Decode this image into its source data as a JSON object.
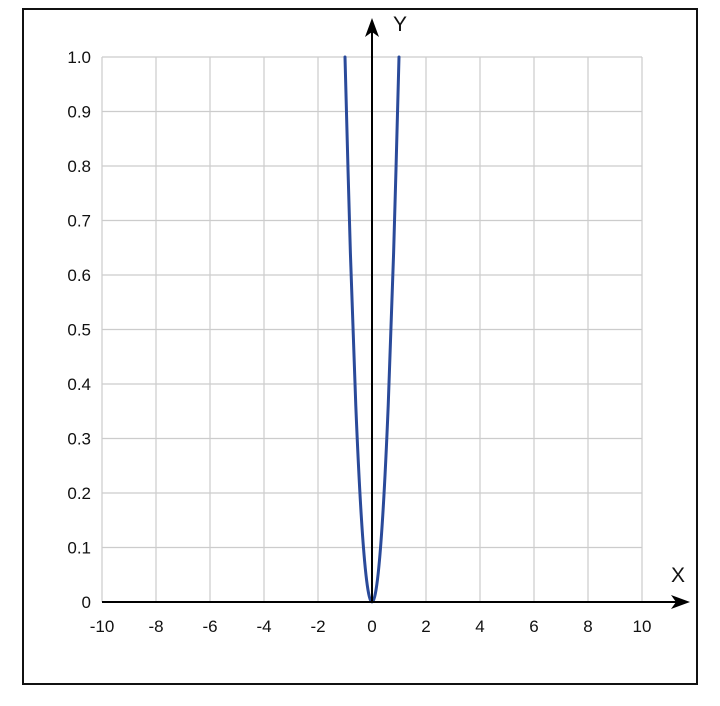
{
  "chart_data": {
    "type": "line",
    "title": "",
    "xlabel": "X",
    "ylabel": "Y",
    "xlim": [
      -10,
      10
    ],
    "ylim": [
      0,
      1.0
    ],
    "x_ticks": [
      -10,
      -8,
      -6,
      -4,
      -2,
      0,
      2,
      4,
      6,
      8,
      10
    ],
    "x_tick_labels": [
      "-10",
      "-8",
      "-6",
      "-4",
      "-2",
      "0",
      "2",
      "4",
      "6",
      "8",
      "10"
    ],
    "y_ticks": [
      0,
      0.1,
      0.2,
      0.3,
      0.4,
      0.5,
      0.6,
      0.7,
      0.8,
      0.9,
      1.0
    ],
    "y_tick_labels": [
      "0",
      "0.1",
      "0.2",
      "0.3",
      "0.4",
      "0.5",
      "0.6",
      "0.7",
      "0.8",
      "0.9",
      "1.0"
    ],
    "grid": true,
    "series": [
      {
        "x": [
          -1.0,
          -0.8,
          -0.6,
          -0.4,
          -0.2,
          0,
          0.2,
          0.4,
          0.6,
          0.8,
          1.0
        ],
        "y": [
          1.0,
          0.64,
          0.36,
          0.16,
          0.04,
          0,
          0.04,
          0.16,
          0.36,
          0.64,
          1.0
        ]
      }
    ],
    "colors": {
      "curve": "#2a4a9a",
      "grid": "#cccccc",
      "axis": "#000000",
      "text": "#111111"
    }
  }
}
